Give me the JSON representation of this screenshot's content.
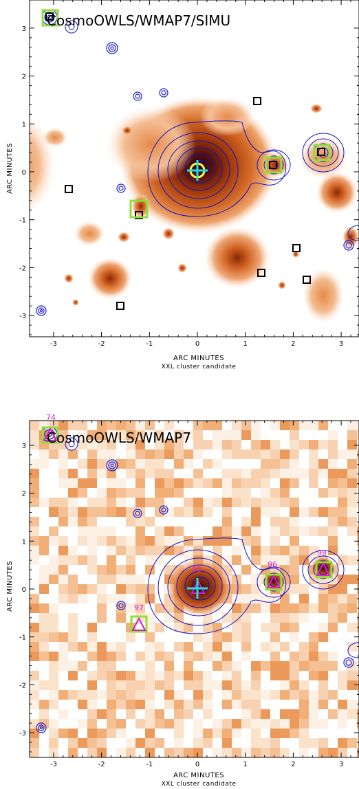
{
  "colors": {
    "map_low": "#f7c9a2",
    "map_mid": "#e07a38",
    "map_high": "#a63d08",
    "map_core": "#3a0810",
    "contour": "#1010cc",
    "point_source": "#1a1ad0",
    "box": "#000000",
    "green_box": "#8ee03a",
    "magenta": "#d21fd2",
    "cyan": "#22e0e0",
    "yellow": "#ffff40"
  },
  "panels": [
    {
      "title": "CosmoOWLS/WMAP7/SIMU",
      "xlabel": "ARC  MINUTES",
      "xsublabel": "XXL cluster candidate",
      "ylabel": "ARC  MINUTES",
      "x_ticks": [
        "-3",
        "-2",
        "-1",
        "0",
        "1",
        "2",
        "3"
      ],
      "y_ticks": [
        "3",
        "2",
        "1",
        "0",
        "-1",
        "-2",
        "-3"
      ],
      "labels": []
    },
    {
      "title": "CosmoOWLS/WMAP7",
      "xlabel": "ARC  MINUTES",
      "xsublabel": "XXL cluster candidate",
      "ylabel": "ARC  MINUTES",
      "x_ticks": [
        "-3",
        "-2",
        "-1",
        "0",
        "1",
        "2",
        "3"
      ],
      "y_ticks": [
        "3",
        "2",
        "1",
        "0",
        "-1",
        "-2",
        "-3"
      ],
      "labels": [
        "74",
        "95",
        "96",
        "97",
        "98"
      ]
    }
  ]
}
